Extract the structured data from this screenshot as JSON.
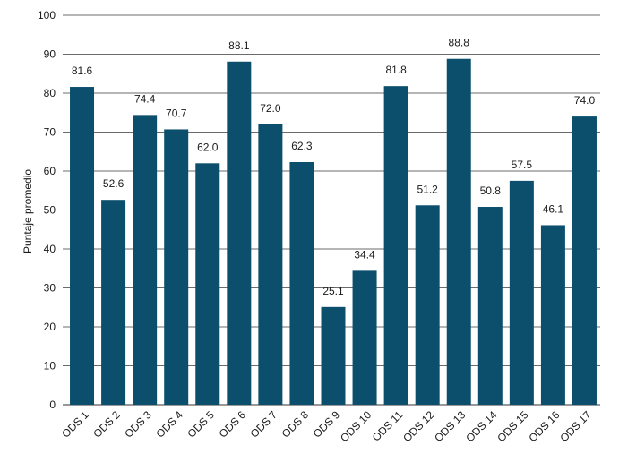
{
  "chart_data": {
    "type": "bar",
    "categories": [
      "ODS 1",
      "ODS 2",
      "ODS 3",
      "ODS 4",
      "ODS 5",
      "ODS 6",
      "ODS 7",
      "ODS 8",
      "ODS 9",
      "ODS 10",
      "ODS 11",
      "ODS 12",
      "ODS 13",
      "ODS 14",
      "ODS 15",
      "ODS 16",
      "ODS 17"
    ],
    "values": [
      81.6,
      52.6,
      74.4,
      70.7,
      62.0,
      88.1,
      72.0,
      62.3,
      25.1,
      34.4,
      81.8,
      51.2,
      88.8,
      50.8,
      57.5,
      46.1,
      74.0
    ],
    "value_labels": [
      "81.6",
      "52.6",
      "74.4",
      "70.7",
      "62.0",
      "88.1",
      "72.0",
      "62.3",
      "25.1",
      "34.4",
      "81.8",
      "51.2",
      "88.8",
      "50.8",
      "57.5",
      "46.1",
      "74.0"
    ],
    "title": "",
    "xlabel": "",
    "ylabel": "Puntaje promedio",
    "ylim": [
      0,
      100
    ],
    "yticks": [
      0,
      10,
      20,
      30,
      40,
      50,
      60,
      70,
      80,
      90,
      100
    ],
    "grid": true,
    "bar_color": "#0b4f6c"
  }
}
